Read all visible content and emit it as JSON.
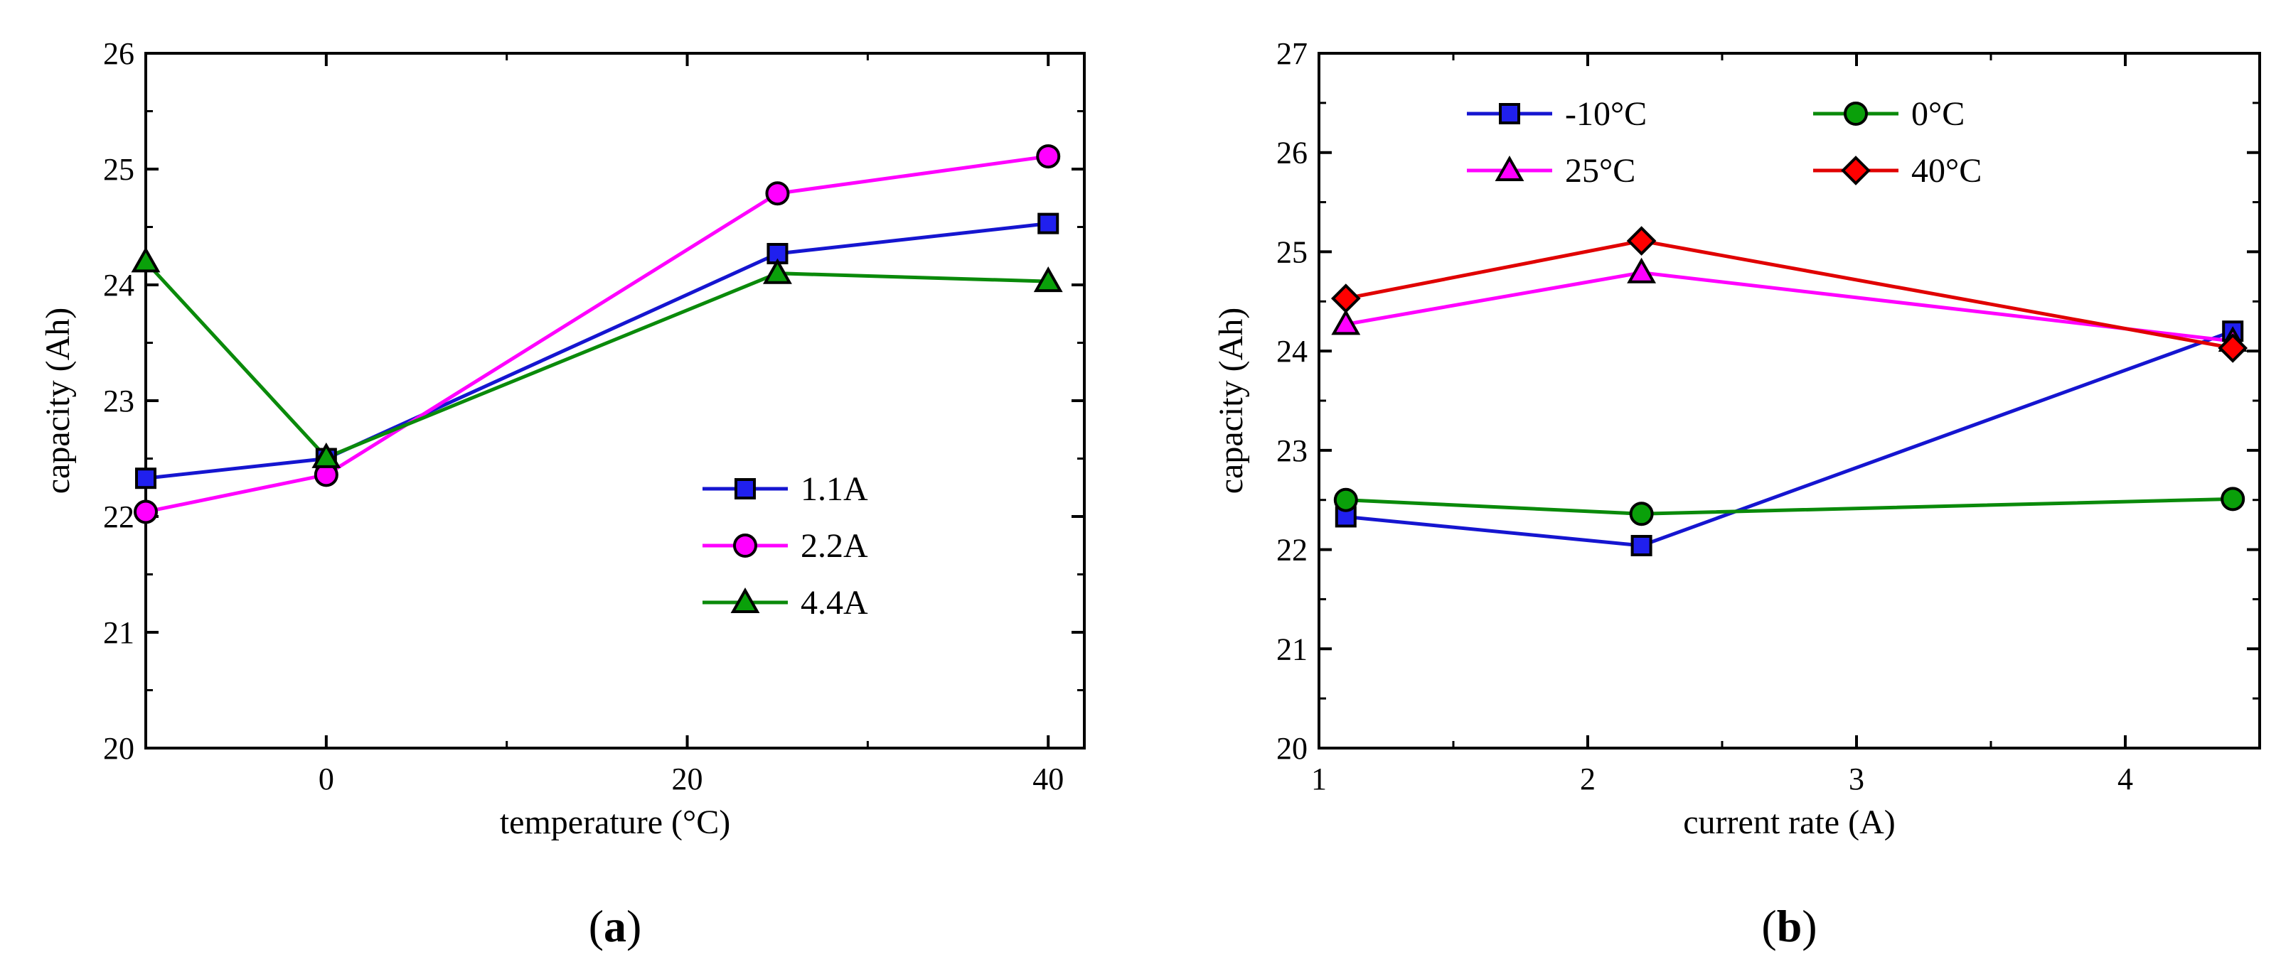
{
  "chart_data": [
    {
      "type": "line",
      "panel_label": "a",
      "xlabel": "temperature (°C)",
      "ylabel": "capacity (Ah)",
      "xlim": [
        -10,
        42
      ],
      "ylim": [
        20,
        26
      ],
      "xticks": [
        0,
        20,
        40
      ],
      "xtick_labels": [
        "0",
        "20",
        "40"
      ],
      "yticks": [
        20,
        21,
        22,
        23,
        24,
        25,
        26
      ],
      "ytick_labels": [
        "20",
        "21",
        "22",
        "23",
        "24",
        "25",
        "26"
      ],
      "legend_position": "lower-right",
      "x": [
        -10,
        0,
        25,
        40
      ],
      "series": [
        {
          "name": "1.1A",
          "values": [
            22.33,
            22.5,
            24.27,
            24.53
          ],
          "color": "#1515d0",
          "fill": "#2020ee",
          "marker": "square"
        },
        {
          "name": "2.2A",
          "values": [
            22.04,
            22.36,
            24.79,
            25.11
          ],
          "color": "#ff00ff",
          "fill": "#ff00ff",
          "marker": "circle"
        },
        {
          "name": "4.4A",
          "values": [
            24.2,
            22.51,
            24.1,
            24.03
          ],
          "color": "#0a8a0a",
          "fill": "#0aa00a",
          "marker": "triangle"
        }
      ]
    },
    {
      "type": "line",
      "panel_label": "b",
      "xlabel": "current rate (A)",
      "ylabel": "capacity (Ah)",
      "xlim": [
        1,
        4.5
      ],
      "ylim": [
        20,
        27
      ],
      "xticks": [
        1,
        2,
        3,
        4
      ],
      "xtick_labels": [
        "1",
        "2",
        "3",
        "4"
      ],
      "yticks": [
        20,
        21,
        22,
        23,
        24,
        25,
        26,
        27
      ],
      "ytick_labels": [
        "20",
        "21",
        "22",
        "23",
        "24",
        "25",
        "26",
        "27"
      ],
      "legend_position": "top",
      "x": [
        1.1,
        2.2,
        4.4
      ],
      "series": [
        {
          "name": "-10°C",
          "values": [
            22.33,
            22.04,
            24.2
          ],
          "color": "#1515d0",
          "fill": "#2020ee",
          "marker": "square"
        },
        {
          "name": "0°C",
          "values": [
            22.5,
            22.36,
            22.51
          ],
          "color": "#0a8a0a",
          "fill": "#0aa00a",
          "marker": "circle"
        },
        {
          "name": "25°C",
          "values": [
            24.27,
            24.79,
            24.1
          ],
          "color": "#ff00ff",
          "fill": "#ff00ff",
          "marker": "triangle"
        },
        {
          "name": "40°C",
          "values": [
            24.53,
            25.11,
            24.03
          ],
          "color": "#e00000",
          "fill": "#ff0000",
          "marker": "diamond"
        }
      ]
    }
  ]
}
